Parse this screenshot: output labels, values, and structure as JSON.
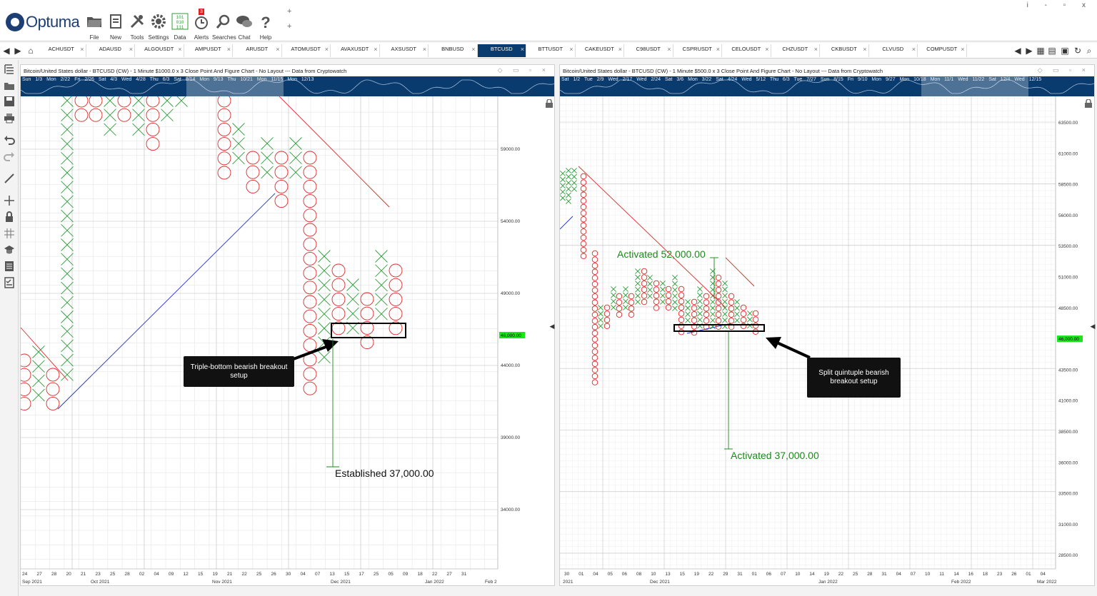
{
  "app": {
    "logo_text": "Optuma"
  },
  "toolbar": {
    "items": [
      {
        "label": "File",
        "icon": "folder-icon"
      },
      {
        "label": "New",
        "icon": "new-page-icon"
      },
      {
        "label": "Tools",
        "icon": "tools-icon"
      },
      {
        "label": "Settings",
        "icon": "gear-icon"
      },
      {
        "label": "Data",
        "icon": "binary-data-icon"
      },
      {
        "label": "Alerts",
        "icon": "alarm-clock-icon",
        "badge": "3"
      },
      {
        "label": "Searches",
        "icon": "search-icon"
      },
      {
        "label": "Chat",
        "icon": "chat-icon"
      },
      {
        "label": "Help",
        "icon": "help-icon"
      }
    ],
    "add_symbol": "+",
    "window_buttons": "i - ▫ x",
    "accent": "#0a3b6e"
  },
  "tabs": [
    "ACHUSDT",
    "ADAUSD",
    "ALGOUSDT",
    "AMPUSDT",
    "ARUSDT",
    "ATOMUSDT",
    "AVAXUSDT",
    "AXSUSDT",
    "BNBUSD",
    "BTCUSD",
    "BTTUSDT",
    "CAKEUSDT",
    "C98USDT",
    "CSPRUSDT",
    "CELOUSDT",
    "CHZUSDT",
    "CKBUSDT",
    "CLVUSD",
    "COMPUSDT"
  ],
  "active_tab": "BTCUSD",
  "left_chart": {
    "title": "Bitcoin/United States dollar - BTCUSD (CW) - 1 Minute $1000.0 x 3 Close Point And Figure Chart - No Layout --- Data from Cryptowatch",
    "overview_dates": "Sun 1/3 Mon 2/22 Fri 2/26 Sat 4/3 Wed 4/28 Thu 6/3 Sat 8/14 Mon 9/13 Thu 10/21 Mon 11/15 Mon 12/13",
    "price_axis": [
      "59000.00",
      "54000.00",
      "49000.00",
      "44000.00",
      "39000.00",
      "34000.00"
    ],
    "current_price": "46,000.00",
    "x_days": [
      "24",
      "27",
      "28",
      "20",
      "21",
      "23",
      "25",
      "28",
      "02",
      "04",
      "09",
      "12",
      "15",
      "19",
      "21",
      "22",
      "25",
      "26",
      "30",
      "04",
      "07",
      "13",
      "15",
      "17",
      "25",
      "05",
      "09",
      "18",
      "22",
      "27",
      "31"
    ],
    "x_months": [
      "Sep 2021",
      "Oct 2021",
      "Nov 2021",
      "Dec 2021",
      "Jan 2022",
      "Feb 2"
    ],
    "annotation": "Established 37,000.00",
    "callout": "Triple-bottom bearish breakout setup"
  },
  "right_chart": {
    "title": "Bitcoin/United States dollar - BTCUSD (CW) - 1 Minute $500.0 x 3 Close Point And Figure Chart - No Layout --- Data from Cryptowatch",
    "overview_dates": "Sat 1/2 Tue 2/9 Wed 2/17 Wed 2/24 Sat 3/6 Mon 3/22 Sat 4/24 Wed 5/12 Thu 6/3 Tue 7/27 Sun 8/15 Fri 9/10 Mon 9/27 Mon 10/18 Mon 11/1 Wed 11/22 Sat 12/4 Wed 12/15",
    "price_axis": [
      "63500.00",
      "61000.00",
      "58500.00",
      "56000.00",
      "53500.00",
      "51000.00",
      "48500.00",
      "46,000.00",
      "43500.00",
      "41000.00",
      "38500.00",
      "36000.00",
      "33500.00",
      "31000.00",
      "28500.00"
    ],
    "current_price": "46,000.00",
    "x_days": [
      "30",
      "01",
      "04",
      "05",
      "06",
      "08",
      "10",
      "13",
      "15",
      "19",
      "22",
      "29",
      "31",
      "01",
      "06",
      "07",
      "10",
      "14",
      "19",
      "22",
      "25",
      "28",
      "31",
      "04",
      "07",
      "10",
      "11",
      "14",
      "16",
      "18",
      "23",
      "26",
      "01",
      "04"
    ],
    "x_months": [
      "2021",
      "Dec 2021",
      "Jan 2022",
      "Feb 2022",
      "Mar 2022"
    ],
    "annotation_top": "Activated 52,000.00",
    "annotation_bottom": "Activated 37,000.00",
    "callout": "Split quintuple bearish breakout setup"
  },
  "colors": {
    "x_marks": "#2e9e3a",
    "o_marks": "#e02828",
    "trend_red": "#e02828",
    "trend_blue": "#2233cc",
    "current_price_bg": "#19e619",
    "annotation_green": "#1a8a1a"
  }
}
